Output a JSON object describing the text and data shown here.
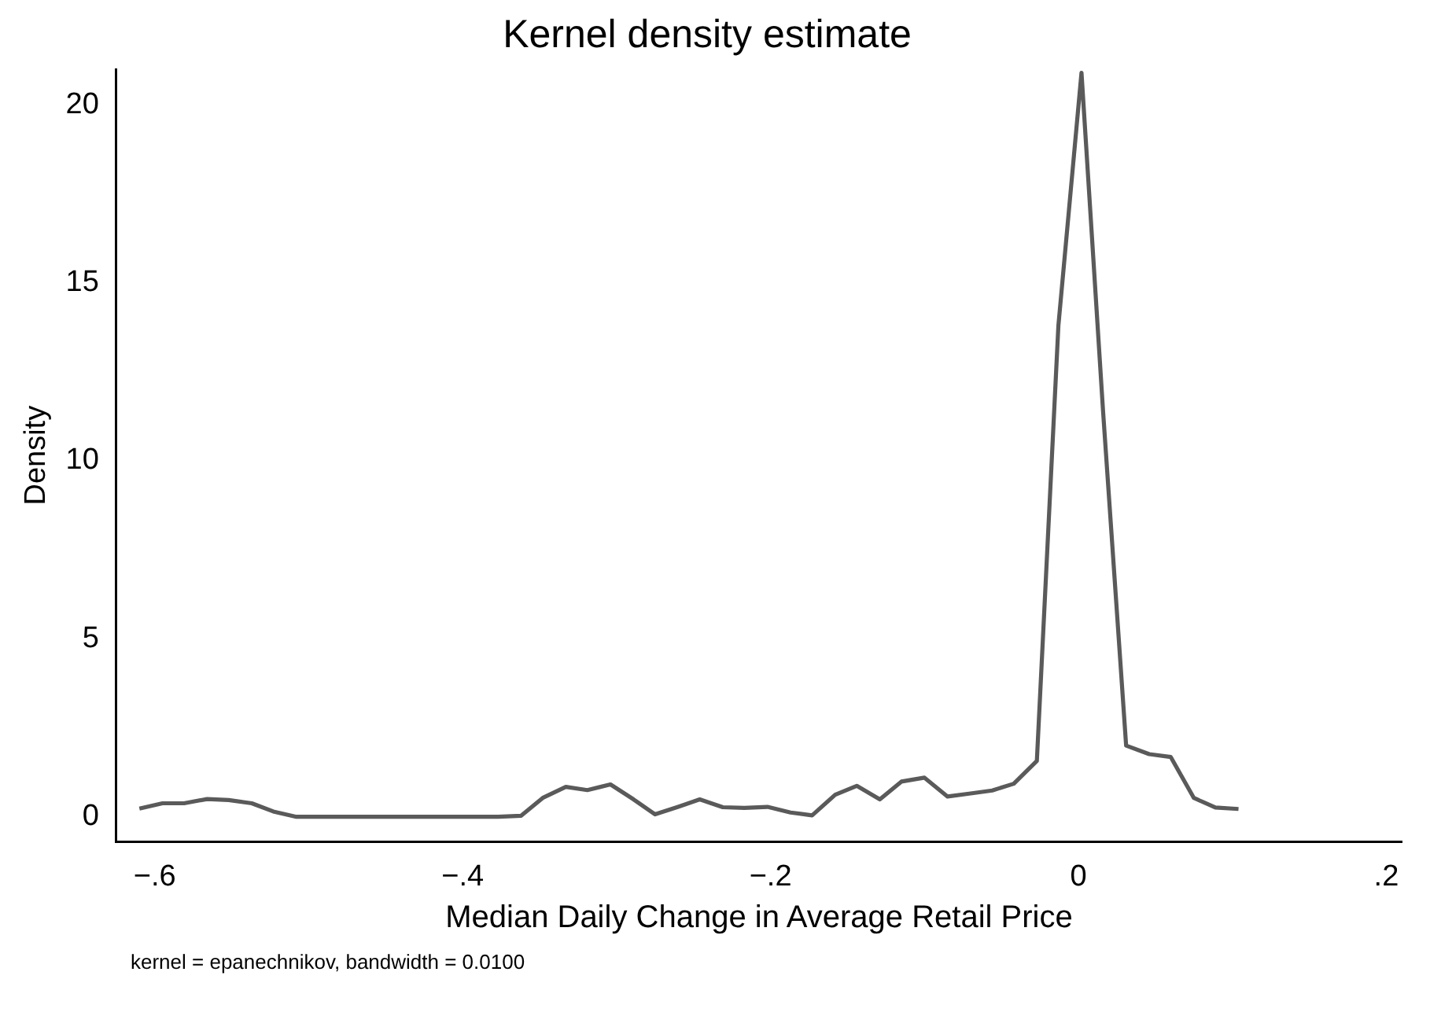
{
  "chart_data": {
    "type": "line",
    "title": "Kernel density estimate",
    "xlabel": "Median Daily Change in Average Retail Price",
    "ylabel": "Density",
    "annotations": [
      "kernel = epanechnikov, bandwidth = 0.0100"
    ],
    "series": [
      {
        "color": "#5a5a5a",
        "x": [
          -0.61,
          -0.595,
          -0.581,
          -0.566,
          -0.552,
          -0.537,
          -0.523,
          -0.508,
          -0.493,
          -0.479,
          -0.464,
          -0.45,
          -0.435,
          -0.421,
          -0.406,
          -0.391,
          -0.377,
          -0.362,
          -0.348,
          -0.333,
          -0.319,
          -0.304,
          -0.289,
          -0.275,
          -0.26,
          -0.246,
          -0.231,
          -0.217,
          -0.202,
          -0.187,
          -0.173,
          -0.158,
          -0.144,
          -0.129,
          -0.115,
          -0.1,
          -0.085,
          -0.071,
          -0.056,
          -0.042,
          -0.027,
          -0.013,
          0.002,
          0.016,
          0.031,
          0.046,
          0.06,
          0.075,
          0.089,
          0.104
        ],
        "values": [
          0.23,
          0.38,
          0.38,
          0.5,
          0.47,
          0.38,
          0.15,
          0,
          0,
          0,
          0,
          0,
          0,
          0,
          0,
          0,
          0,
          0.03,
          0.53,
          0.84,
          0.75,
          0.91,
          0.49,
          0.07,
          0.28,
          0.49,
          0.27,
          0.25,
          0.28,
          0.12,
          0.04,
          0.62,
          0.87,
          0.49,
          0.99,
          1.1,
          0.57,
          0.65,
          0.74,
          0.93,
          1.57,
          13.8,
          20.9,
          11.4,
          2,
          1.76,
          1.68,
          0.53,
          0.26,
          0.22
        ]
      }
    ],
    "xlim": [
      -0.625,
      0.21
    ],
    "xticks": [
      {
        "value": -0.6,
        "label": "−.6"
      },
      {
        "value": -0.4,
        "label": "−.4"
      },
      {
        "value": -0.2,
        "label": "−.2"
      },
      0,
      {
        "value": 0.2,
        "label": ".2"
      }
    ],
    "ylim": [
      -0.7,
      21
    ],
    "yticks": [
      0,
      5,
      10,
      15,
      20
    ],
    "grid": false,
    "legend": false,
    "marker": "none",
    "line_style": "solid"
  }
}
